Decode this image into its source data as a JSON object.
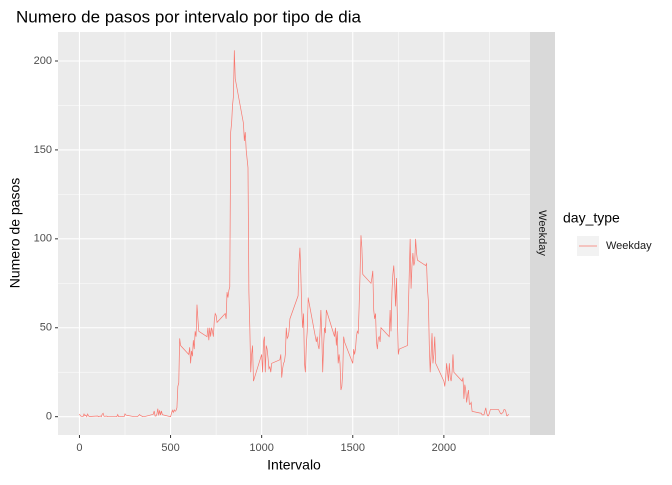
{
  "chart_data": {
    "type": "line",
    "title": "Numero de pasos por intervalo por tipo de dia",
    "x_label": "Intervalo",
    "y_label": "Numero de pasos",
    "legend_title": "day_type",
    "facet_label": "Weekday",
    "x": [
      0,
      5,
      10,
      15,
      20,
      25,
      30,
      35,
      40,
      45,
      50,
      55,
      100,
      105,
      110,
      115,
      120,
      125,
      130,
      135,
      140,
      145,
      150,
      155,
      200,
      205,
      210,
      215,
      220,
      225,
      230,
      235,
      240,
      245,
      250,
      255,
      300,
      305,
      310,
      315,
      320,
      325,
      330,
      335,
      340,
      345,
      350,
      355,
      400,
      405,
      410,
      415,
      420,
      425,
      430,
      435,
      440,
      445,
      450,
      455,
      500,
      505,
      510,
      515,
      520,
      525,
      530,
      535,
      540,
      545,
      550,
      555,
      600,
      605,
      610,
      615,
      620,
      625,
      630,
      635,
      640,
      645,
      650,
      655,
      700,
      705,
      710,
      715,
      720,
      725,
      730,
      735,
      740,
      745,
      750,
      755,
      800,
      805,
      810,
      815,
      820,
      825,
      830,
      835,
      840,
      845,
      850,
      855,
      900,
      905,
      910,
      915,
      920,
      925,
      930,
      935,
      940,
      945,
      950,
      955,
      1000,
      1005,
      1010,
      1015,
      1020,
      1025,
      1030,
      1035,
      1040,
      1045,
      1050,
      1055,
      1100,
      1105,
      1110,
      1115,
      1120,
      1125,
      1130,
      1135,
      1140,
      1145,
      1150,
      1155,
      1200,
      1205,
      1210,
      1215,
      1220,
      1225,
      1230,
      1235,
      1240,
      1245,
      1250,
      1255,
      1300,
      1305,
      1310,
      1315,
      1320,
      1325,
      1330,
      1335,
      1340,
      1345,
      1350,
      1355,
      1400,
      1405,
      1410,
      1415,
      1420,
      1425,
      1430,
      1435,
      1440,
      1445,
      1450,
      1455,
      1500,
      1505,
      1510,
      1515,
      1520,
      1525,
      1530,
      1535,
      1540,
      1545,
      1550,
      1555,
      1600,
      1605,
      1610,
      1615,
      1620,
      1625,
      1630,
      1635,
      1640,
      1645,
      1650,
      1655,
      1700,
      1705,
      1710,
      1715,
      1720,
      1725,
      1730,
      1735,
      1740,
      1745,
      1750,
      1755,
      1800,
      1805,
      1810,
      1815,
      1820,
      1825,
      1830,
      1835,
      1840,
      1845,
      1850,
      1855,
      1900,
      1905,
      1910,
      1915,
      1920,
      1925,
      1930,
      1935,
      1940,
      1945,
      1950,
      1955,
      2000,
      2005,
      2010,
      2015,
      2020,
      2025,
      2030,
      2035,
      2040,
      2045,
      2050,
      2055,
      2100,
      2105,
      2110,
      2115,
      2120,
      2125,
      2130,
      2135,
      2140,
      2145,
      2150,
      2155,
      2200,
      2205,
      2210,
      2215,
      2220,
      2225,
      2230,
      2235,
      2240,
      2245,
      2250,
      2255,
      2300,
      2305,
      2310,
      2315,
      2320,
      2325,
      2330,
      2335,
      2340,
      2345,
      2350,
      2355
    ],
    "series": [
      {
        "name": "Weekday",
        "color": "#F8766D",
        "values": [
          1.5,
          0.5,
          0.2,
          0.2,
          0.1,
          1.5,
          0.5,
          0.9,
          0,
          1.5,
          0.4,
          0.1,
          0.4,
          0,
          0.2,
          0.4,
          0,
          1.4,
          1.9,
          0.2,
          0.2,
          0.3,
          0.3,
          0,
          0,
          0,
          1.2,
          0,
          0,
          0.2,
          0,
          0.2,
          0,
          0,
          1.6,
          0.9,
          0,
          0,
          0,
          0,
          0.2,
          0.7,
          1.2,
          0.6,
          0.5,
          0.1,
          0,
          0,
          1.2,
          1.3,
          3.2,
          0.4,
          0.4,
          1.4,
          4.5,
          0.7,
          3.6,
          0.9,
          3.2,
          1.1,
          0,
          1.9,
          3.6,
          2.4,
          3.8,
          3,
          3.5,
          5,
          17,
          19,
          44,
          40,
          35,
          39,
          30,
          37,
          34,
          43,
          38,
          48,
          45,
          63,
          55,
          48,
          45,
          50,
          43,
          50,
          45,
          50,
          48,
          45,
          54,
          58,
          57,
          53,
          58,
          55,
          70,
          67,
          71,
          73,
          160,
          165,
          175,
          180,
          206,
          190,
          165,
          155,
          160,
          150,
          145,
          140,
          70,
          50,
          25,
          35,
          40,
          20,
          35,
          25,
          42,
          45,
          25,
          40,
          38,
          33,
          27,
          28,
          25,
          30,
          32,
          35,
          22,
          27,
          30,
          31,
          35,
          50,
          44,
          45,
          48,
          55,
          68,
          87,
          95,
          80,
          60,
          50,
          58,
          30,
          25,
          40,
          48,
          67,
          42,
          45,
          40,
          38,
          47,
          60,
          46,
          25,
          40,
          50,
          47,
          60,
          45,
          50,
          40,
          48,
          30,
          35,
          30,
          15,
          17,
          25,
          45,
          42,
          30,
          38,
          35,
          38,
          45,
          48,
          47,
          62,
          80,
          102,
          95,
          80,
          75,
          78,
          82,
          60,
          55,
          58,
          42,
          38,
          44,
          45,
          42,
          50,
          45,
          60,
          48,
          70,
          80,
          85,
          75,
          62,
          78,
          55,
          35,
          38,
          40,
          60,
          80,
          100,
          72,
          85,
          92,
          85,
          87,
          100,
          92,
          88,
          85,
          86,
          72,
          65,
          40,
          25,
          35,
          47,
          30,
          35,
          45,
          30,
          20,
          17,
          22,
          30,
          25,
          20,
          30,
          22,
          20,
          25,
          35,
          25,
          20,
          22,
          10,
          18,
          15,
          8,
          12,
          15,
          7,
          7,
          8,
          3,
          2,
          2,
          1,
          1,
          1,
          3,
          5,
          2,
          0.5,
          0.5,
          2,
          4,
          4,
          3,
          2,
          1.5,
          2,
          2.5,
          4,
          4,
          3,
          0.5,
          0.5,
          1.5
        ]
      }
    ],
    "xlim": [
      -117.75,
      2472.75
    ],
    "ylim": [
      -10.3,
      216.3
    ],
    "xticks": [
      0,
      500,
      1000,
      1500,
      2000
    ],
    "yticks": [
      0,
      50,
      100,
      150,
      200
    ],
    "xminorticks": [
      250,
      750,
      1250,
      1750,
      2250
    ],
    "yminorticks": [
      25,
      75,
      125,
      175
    ],
    "grid": true,
    "legend_position": "right"
  }
}
